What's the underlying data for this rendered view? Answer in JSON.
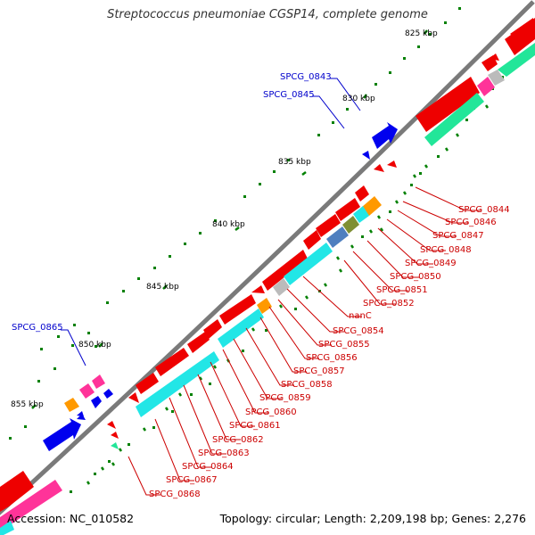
{
  "title": "Streptococcus pneumoniae CGSP14, complete genome",
  "footer": {
    "accession": "Accession: NC_010582",
    "topology": "Topology: circular; Length: 2,209,198 bp; Genes: 2,276"
  },
  "colors": {
    "backbone": "#7a7a7a",
    "forward_gene": "#0000ee",
    "reverse_gene": "#ee0000",
    "scale_tick": "#008000",
    "forward_label": "#0000cc",
    "reverse_label": "#cc0000",
    "cog_cyan": "#22e6e6",
    "cog_green": "#22e699",
    "cog_pink": "#ff3399",
    "cog_gray": "#bbbbbb",
    "cog_orange": "#ff9900",
    "cog_olive": "#7f8f33",
    "cog_steel": "#4f7fbf"
  },
  "scale_labels": [
    "825 kbp",
    "830 kbp",
    "835 kbp",
    "840 kbp",
    "845 kbp",
    "850 kbp",
    "855 kbp"
  ],
  "forward_labels": [
    "SPCG_0843",
    "SPCG_0845",
    "SPCG_0865"
  ],
  "reverse_labels": [
    "SPCG_0844",
    "SPCG_0846",
    "SPCG_0847",
    "SPCG_0848",
    "SPCG_0849",
    "SPCG_0850",
    "SPCG_0851",
    "SPCG_0852",
    "nanC",
    "SPCG_0854",
    "SPCG_0855",
    "SPCG_0856",
    "SPCG_0857",
    "SPCG_0858",
    "SPCG_0859",
    "SPCG_0860",
    "SPCG_0861",
    "SPCG_0862",
    "SPCG_0863",
    "SPCG_0864",
    "SPCG_0867",
    "SPCG_0868"
  ]
}
